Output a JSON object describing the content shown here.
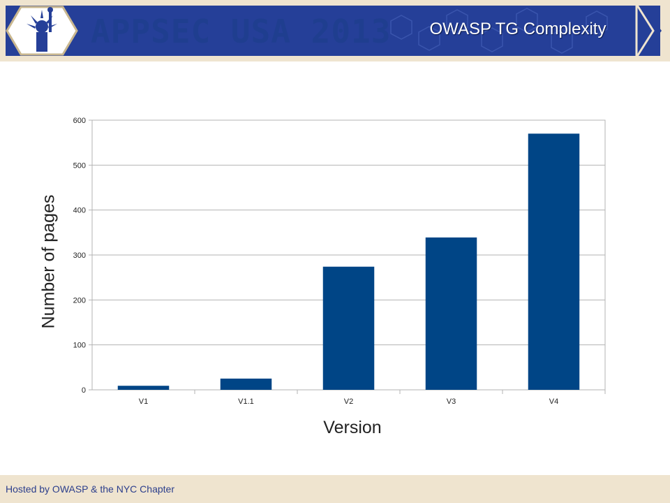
{
  "header": {
    "logo_text": "APPSEC USA 2013",
    "slide_title": "OWASP TG Complexity"
  },
  "footer": {
    "text": "Hosted by OWASP & the NYC Chapter"
  },
  "colors": {
    "banner_blue": "#253f98",
    "banner_beige": "#efe4cf",
    "bar_fill": "#004586",
    "grid": "#b3b3b3"
  },
  "chart_data": {
    "type": "bar",
    "categories": [
      "V1",
      "V1.1",
      "V2",
      "V3",
      "V4"
    ],
    "values": [
      9,
      25,
      274,
      339,
      570
    ],
    "xlabel": "Version",
    "ylabel": "Number of pages",
    "ylim": [
      0,
      600
    ],
    "yticks": [
      0,
      100,
      200,
      300,
      400,
      500,
      600
    ],
    "grid": true,
    "legend": "none"
  }
}
